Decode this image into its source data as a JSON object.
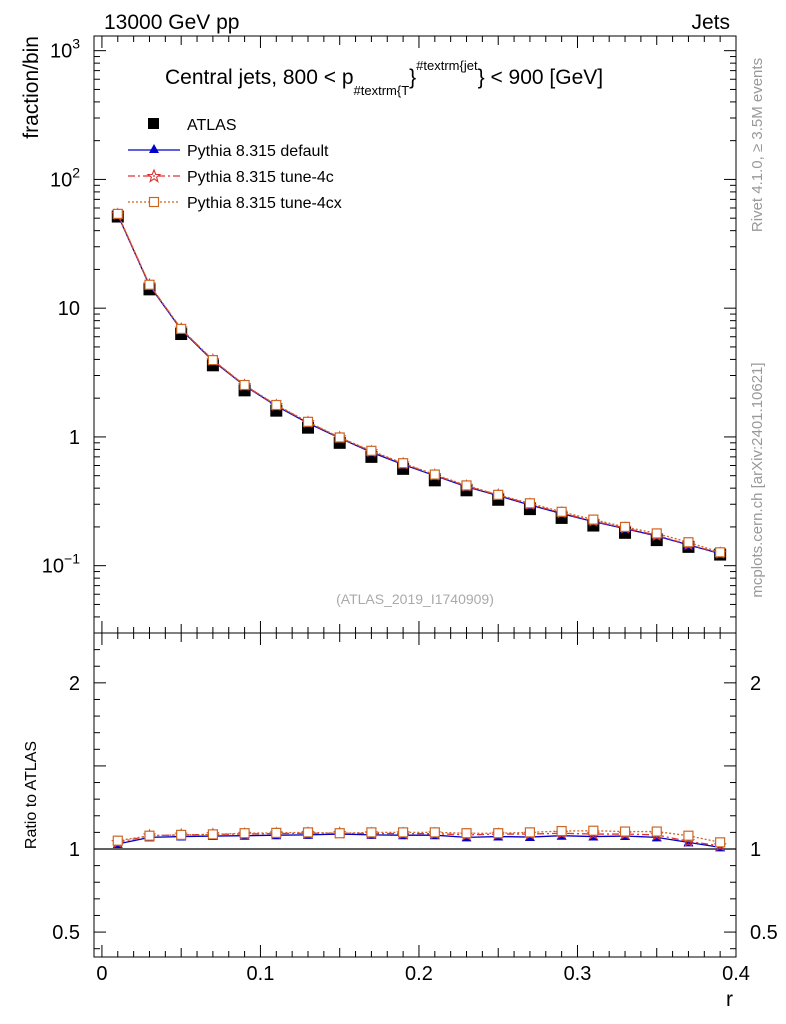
{
  "header": {
    "left": "13000 GeV pp",
    "right": "Jets"
  },
  "side_labels": {
    "rivet": "Rivet 4.1.0, ≥ 3.5M events",
    "mcplots": "mcplots.cern.ch [arXiv:2401.10621]"
  },
  "chart_data": [
    {
      "id": "main",
      "type": "line",
      "title": "Central jets, 800 < p",
      "title_sub": "#textrm{T",
      "title_sup": "#textrm{jet",
      "title_tail": " < 900 [GeV]",
      "ylabel": "fraction/bin",
      "yscale": "log",
      "ylim": [
        0.03,
        1300
      ],
      "xlim": [
        -0.005,
        0.4
      ],
      "watermark": "(ATLAS_2019_I1740909)",
      "y_tick_labels": [
        {
          "value": 1000,
          "base": "10",
          "exp": "3"
        },
        {
          "value": 100,
          "base": "10",
          "exp": "2"
        },
        {
          "value": 10,
          "base": "10",
          "exp": ""
        },
        {
          "value": 1,
          "base": "1",
          "exp": ""
        },
        {
          "value": 0.1,
          "base": "10",
          "exp": "−1"
        }
      ],
      "x": [
        0.01,
        0.03,
        0.05,
        0.07,
        0.09,
        0.11,
        0.13,
        0.15,
        0.17,
        0.19,
        0.21,
        0.23,
        0.25,
        0.27,
        0.29,
        0.31,
        0.33,
        0.35,
        0.37,
        0.39
      ],
      "series": [
        {
          "name": "ATLAS",
          "marker": "square",
          "color": "#000000",
          "values": [
            51.5,
            14.0,
            6.3,
            3.6,
            2.3,
            1.6,
            1.18,
            0.9,
            0.7,
            0.565,
            0.46,
            0.385,
            0.325,
            0.275,
            0.235,
            0.205,
            0.18,
            0.158,
            0.14,
            0.122
          ]
        },
        {
          "name": "Pythia 8.315 default",
          "marker": "triangle",
          "color": "#0000cc",
          "dash": "",
          "values": [
            53.0,
            15.0,
            6.8,
            3.9,
            2.5,
            1.74,
            1.28,
            0.98,
            0.76,
            0.61,
            0.5,
            0.41,
            0.35,
            0.296,
            0.254,
            0.22,
            0.194,
            0.17,
            0.145,
            0.124
          ]
        },
        {
          "name": "Pythia 8.315 tune-4c",
          "marker": "star",
          "color": "#dd3333",
          "dash": "7,3,2,3",
          "values": [
            53.5,
            15.2,
            6.9,
            3.95,
            2.52,
            1.76,
            1.3,
            0.99,
            0.77,
            0.62,
            0.505,
            0.415,
            0.354,
            0.3,
            0.257,
            0.222,
            0.196,
            0.172,
            0.146,
            0.125
          ]
        },
        {
          "name": "Pythia 8.315 tune-4cx",
          "marker": "open-square",
          "color": "#cc6622",
          "dash": "2,2",
          "values": [
            54.0,
            15.2,
            6.9,
            3.95,
            2.53,
            1.77,
            1.31,
            0.99,
            0.78,
            0.625,
            0.51,
            0.42,
            0.355,
            0.305,
            0.262,
            0.228,
            0.2,
            0.178,
            0.152,
            0.127
          ]
        }
      ]
    },
    {
      "id": "ratio",
      "type": "line",
      "ylabel": "Ratio to ATLAS",
      "xlabel": "r",
      "ylim": [
        0.35,
        2.3
      ],
      "xlim": [
        -0.005,
        0.4
      ],
      "y_tick_labels": [
        {
          "value": 2,
          "label": "2"
        },
        {
          "value": 1,
          "label": "1"
        },
        {
          "value": 0.5,
          "label": "0.5"
        }
      ],
      "x_tick_labels": [
        {
          "value": 0,
          "label": "0"
        },
        {
          "value": 0.1,
          "label": "0.1"
        },
        {
          "value": 0.2,
          "label": "0.2"
        },
        {
          "value": 0.3,
          "label": "0.3"
        },
        {
          "value": 0.4,
          "label": "0.4"
        }
      ],
      "reference_line": 1,
      "x": [
        0.01,
        0.03,
        0.05,
        0.07,
        0.09,
        0.11,
        0.13,
        0.15,
        0.17,
        0.19,
        0.21,
        0.23,
        0.25,
        0.27,
        0.29,
        0.31,
        0.33,
        0.35,
        0.37,
        0.39
      ],
      "series": [
        {
          "name": "Pythia 8.315 default",
          "marker": "triangle",
          "color": "#0000cc",
          "dash": "",
          "values": [
            1.03,
            1.07,
            1.075,
            1.078,
            1.08,
            1.083,
            1.085,
            1.09,
            1.085,
            1.083,
            1.083,
            1.07,
            1.075,
            1.072,
            1.08,
            1.075,
            1.078,
            1.07,
            1.04,
            1.01
          ]
        },
        {
          "name": "Pythia 8.315 tune-4c",
          "marker": "star",
          "color": "#dd3333",
          "dash": "7,3,2,3",
          "values": [
            1.04,
            1.08,
            1.085,
            1.088,
            1.09,
            1.093,
            1.095,
            1.095,
            1.093,
            1.093,
            1.092,
            1.085,
            1.09,
            1.09,
            1.095,
            1.09,
            1.09,
            1.085,
            1.045,
            1.02
          ]
        },
        {
          "name": "Pythia 8.315 tune-4cx",
          "marker": "open-square",
          "color": "#cc6622",
          "dash": "2,2",
          "values": [
            1.05,
            1.08,
            1.085,
            1.088,
            1.095,
            1.097,
            1.1,
            1.095,
            1.1,
            1.1,
            1.1,
            1.095,
            1.095,
            1.1,
            1.108,
            1.11,
            1.105,
            1.105,
            1.08,
            1.04
          ]
        }
      ]
    }
  ]
}
